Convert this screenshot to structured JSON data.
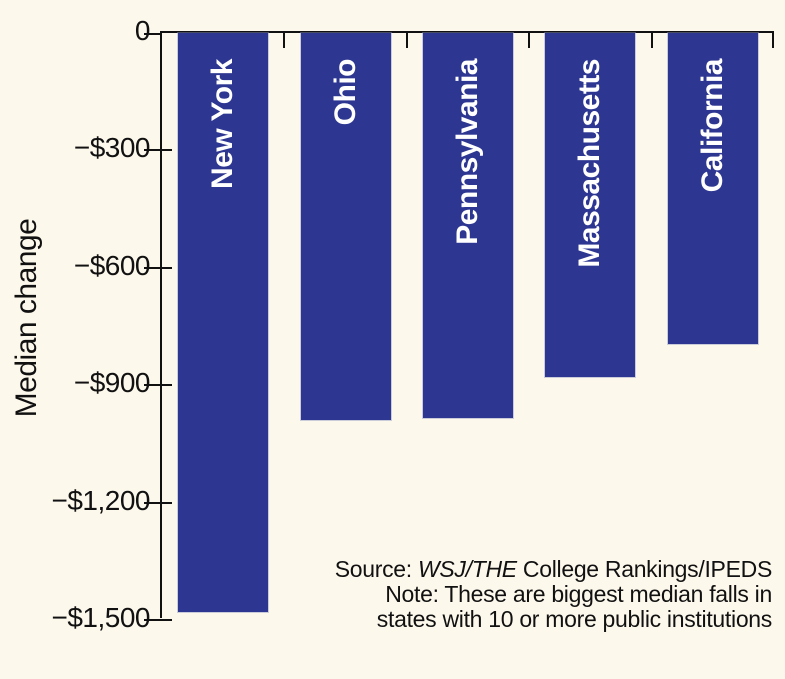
{
  "chart_data": {
    "type": "bar",
    "categories": [
      "New York",
      "Ohio",
      "Pennsylvania",
      "Massachusetts",
      "California"
    ],
    "values": [
      -1480,
      -990,
      -985,
      -880,
      -795
    ],
    "title": "",
    "xlabel": "",
    "ylabel": "Median change",
    "ylim": [
      -1500,
      0
    ],
    "ytick_step": 300,
    "ytick_labels": [
      "0",
      "−$300",
      "−$600",
      "−$900",
      "−$1,200",
      "−$1,500"
    ],
    "bar_color": "#2d3691",
    "bar_label_color": "#ffffff",
    "background_color": "#fdf8ec",
    "axis_color": "#111111",
    "grid": false,
    "legend_position": "none",
    "bar_orientation": "vertical-downward"
  },
  "note": {
    "line1_prefix": "Source: ",
    "line1_italic": "WSJ/THE",
    "line1_suffix": " College Rankings/IPEDS",
    "line2": "Note: These are biggest median falls in",
    "line3": "states with 10 or more public institutions"
  }
}
